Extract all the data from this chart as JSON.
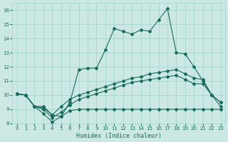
{
  "xlabel": "Humidex (Indice chaleur)",
  "bg_color": "#cce8e4",
  "line_color": "#1a6b5a",
  "grid_color": "#a8d4ce",
  "xlim": [
    -0.5,
    23.5
  ],
  "ylim": [
    8,
    16.5
  ],
  "xticks": [
    0,
    1,
    2,
    3,
    4,
    5,
    6,
    7,
    8,
    9,
    10,
    11,
    12,
    13,
    14,
    15,
    16,
    17,
    18,
    19,
    20,
    21,
    22,
    23
  ],
  "yticks": [
    8,
    9,
    10,
    11,
    12,
    13,
    14,
    15,
    16
  ],
  "line1_x": [
    0,
    1,
    2,
    3,
    4,
    5,
    6,
    7,
    8,
    9,
    10,
    11,
    12,
    13,
    14,
    15,
    16,
    17,
    18,
    19,
    20,
    21,
    22,
    23
  ],
  "line1_y": [
    10.1,
    10.0,
    9.2,
    9.2,
    8.6,
    8.5,
    9.5,
    11.8,
    11.9,
    11.9,
    13.2,
    14.7,
    14.5,
    14.3,
    14.6,
    14.5,
    15.3,
    16.1,
    13.0,
    12.9,
    12.0,
    11.0,
    10.0,
    9.5
  ],
  "line2_x": [
    0,
    1,
    2,
    3,
    4,
    5,
    6,
    7,
    8,
    9,
    10,
    11,
    12,
    13,
    14,
    15,
    16,
    17,
    18,
    19,
    20,
    21,
    22,
    23
  ],
  "line2_y": [
    10.1,
    10.0,
    9.2,
    9.1,
    8.6,
    9.2,
    9.7,
    10.0,
    10.2,
    10.4,
    10.6,
    10.8,
    11.0,
    11.2,
    11.3,
    11.5,
    11.6,
    11.7,
    11.8,
    11.5,
    11.2,
    11.1,
    10.0,
    9.5
  ],
  "line3_x": [
    0,
    1,
    2,
    3,
    4,
    5,
    6,
    7,
    8,
    9,
    10,
    11,
    12,
    13,
    14,
    15,
    16,
    17,
    18,
    19,
    20,
    21,
    22,
    23
  ],
  "line3_y": [
    10.1,
    10.0,
    9.2,
    9.0,
    8.4,
    8.8,
    9.3,
    9.7,
    9.9,
    10.1,
    10.3,
    10.5,
    10.7,
    10.9,
    11.0,
    11.1,
    11.2,
    11.3,
    11.4,
    11.1,
    10.8,
    10.8,
    10.0,
    9.2
  ],
  "line4_x": [
    0,
    1,
    2,
    3,
    4,
    5,
    6,
    7,
    8,
    9,
    10,
    11,
    12,
    13,
    14,
    15,
    16,
    17,
    18,
    19,
    20,
    21,
    22,
    23
  ],
  "line4_y": [
    10.1,
    10.0,
    9.2,
    8.7,
    8.1,
    8.5,
    8.9,
    9.0,
    9.0,
    9.0,
    9.0,
    9.0,
    9.0,
    9.0,
    9.0,
    9.0,
    9.0,
    9.0,
    9.0,
    9.0,
    9.0,
    9.0,
    9.0,
    9.0
  ],
  "marker": "D",
  "markersize": 2.0,
  "linewidth": 0.8,
  "xlabel_fontsize": 6.0,
  "tick_fontsize": 5.0
}
